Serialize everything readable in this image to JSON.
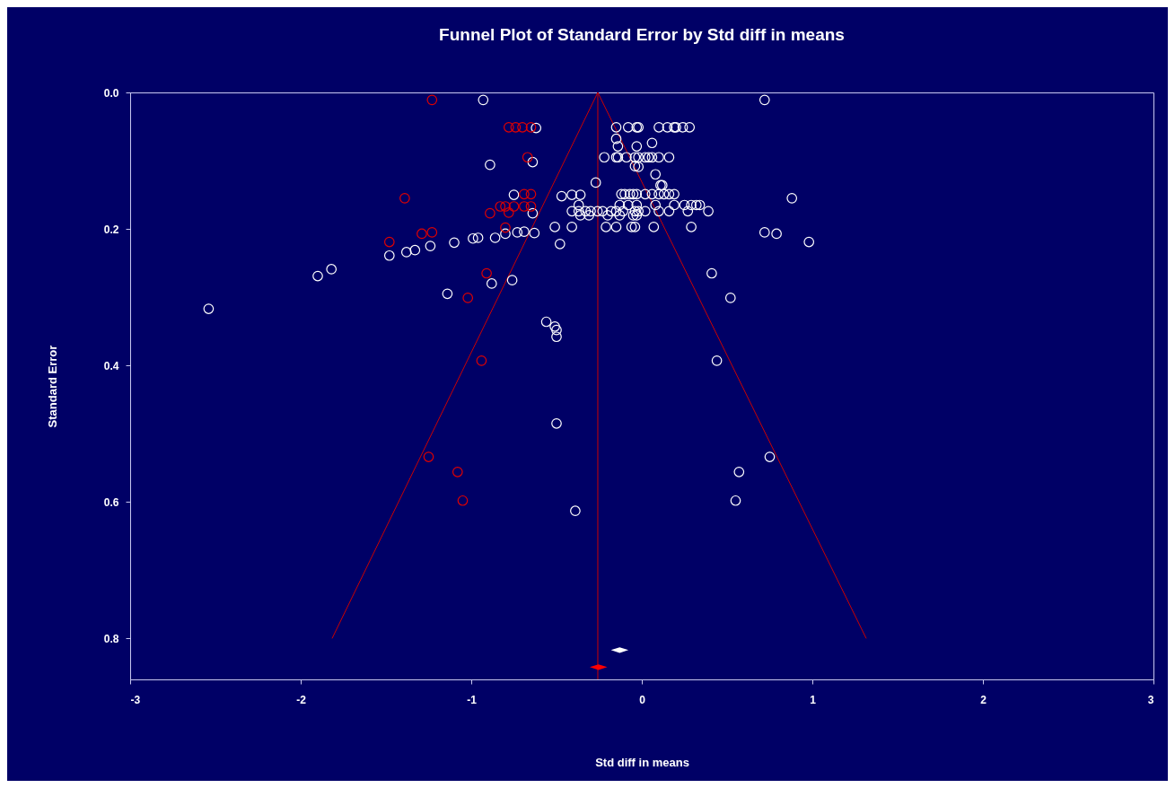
{
  "chart_data": {
    "type": "scatter",
    "title": "Funnel Plot of Standard Error by Std diff in means",
    "xlabel": "Std diff in means",
    "ylabel": "Standard Error",
    "xlim": [
      -3,
      3
    ],
    "xticks": [
      -3,
      -2,
      -1,
      0,
      1,
      2,
      3
    ],
    "ylim": [
      0.86,
      0
    ],
    "yticks": [
      {
        "value": 0,
        "label": "0.0"
      },
      0.2,
      0.4,
      0.6,
      0.8
    ],
    "grid": false,
    "marker": "circle",
    "series": [
      {
        "color": "#ffffff",
        "x": [
          -0.93,
          0.72,
          -0.62,
          -0.89,
          -0.64,
          -0.75,
          -0.64,
          -0.63,
          -0.69,
          -0.73,
          -0.8,
          -0.86,
          -0.96,
          -0.99,
          -1.1,
          -1.24,
          -1.33,
          -1.38,
          -1.48,
          -1.82,
          -1.9,
          -2.54,
          -1.14,
          -0.88,
          -0.76,
          -0.56,
          -0.51,
          -0.5,
          -0.5,
          -0.5,
          -0.39,
          0.41,
          0.52,
          0.44,
          0.75,
          0.57,
          0.55,
          0.88,
          0.72,
          0.79,
          0.98,
          -0.15,
          -0.08,
          -0.03,
          -0.02,
          0.1,
          0.15,
          0.19,
          0.2,
          0.24,
          0.28,
          -0.15,
          -0.14,
          -0.03,
          0.06,
          -0.22,
          -0.15,
          -0.14,
          -0.09,
          -0.04,
          -0.02,
          0.02,
          0.04,
          0.06,
          0.1,
          0.16,
          -0.04,
          -0.02,
          0.08,
          -0.27,
          0.11,
          0.12,
          -0.47,
          -0.41,
          -0.36,
          -0.12,
          -0.1,
          -0.07,
          -0.05,
          -0.03,
          0.02,
          0.06,
          0.1,
          0.13,
          0.16,
          0.19,
          -0.37,
          -0.13,
          -0.08,
          -0.03,
          0.08,
          0.19,
          0.25,
          0.29,
          0.32,
          0.34,
          -0.41,
          -0.37,
          -0.33,
          -0.3,
          -0.26,
          -0.23,
          -0.18,
          -0.15,
          -0.11,
          -0.04,
          -0.02,
          0.02,
          0.1,
          0.16,
          0.27,
          0.39,
          -0.36,
          -0.31,
          -0.2,
          -0.13,
          -0.05,
          -0.03,
          -0.51,
          -0.41,
          -0.21,
          -0.15,
          -0.06,
          -0.04,
          0.07,
          0.29,
          -0.48
        ],
        "values": [
          0.011,
          0.011,
          0.052,
          0.106,
          0.102,
          0.15,
          0.177,
          0.206,
          0.204,
          0.205,
          0.207,
          0.213,
          0.213,
          0.214,
          0.22,
          0.225,
          0.231,
          0.234,
          0.239,
          0.259,
          0.269,
          0.317,
          0.295,
          0.28,
          0.275,
          0.336,
          0.343,
          0.348,
          0.358,
          0.485,
          0.613,
          0.265,
          0.301,
          0.393,
          0.534,
          0.556,
          0.598,
          0.155,
          0.205,
          0.207,
          0.219,
          0.051,
          0.051,
          0.051,
          0.051,
          0.051,
          0.051,
          0.051,
          0.051,
          0.051,
          0.051,
          0.068,
          0.079,
          0.079,
          0.074,
          0.095,
          0.095,
          0.095,
          0.095,
          0.095,
          0.095,
          0.095,
          0.095,
          0.095,
          0.095,
          0.095,
          0.108,
          0.109,
          0.12,
          0.132,
          0.136,
          0.136,
          0.152,
          0.15,
          0.15,
          0.149,
          0.149,
          0.149,
          0.149,
          0.149,
          0.149,
          0.149,
          0.149,
          0.149,
          0.149,
          0.149,
          0.165,
          0.165,
          0.165,
          0.165,
          0.165,
          0.165,
          0.165,
          0.165,
          0.165,
          0.165,
          0.174,
          0.174,
          0.174,
          0.174,
          0.174,
          0.174,
          0.174,
          0.174,
          0.174,
          0.174,
          0.174,
          0.174,
          0.174,
          0.174,
          0.174,
          0.174,
          0.18,
          0.18,
          0.18,
          0.18,
          0.18,
          0.18,
          0.197,
          0.197,
          0.197,
          0.197,
          0.197,
          0.197,
          0.197,
          0.197,
          0.222
        ]
      },
      {
        "color": "#e00000",
        "x": [
          -1.23,
          -0.78,
          -0.74,
          -0.7,
          -0.65,
          -0.67,
          -1.39,
          -0.69,
          -0.65,
          -0.83,
          -0.8,
          -0.75,
          -0.69,
          -0.65,
          -0.89,
          -0.78,
          -0.8,
          -1.29,
          -1.23,
          -1.48,
          -0.91,
          -1.02,
          -0.94,
          -1.25,
          -1.08,
          -1.05
        ],
        "values": [
          0.011,
          0.051,
          0.051,
          0.051,
          0.051,
          0.095,
          0.155,
          0.149,
          0.149,
          0.167,
          0.167,
          0.167,
          0.167,
          0.167,
          0.177,
          0.176,
          0.198,
          0.207,
          0.205,
          0.219,
          0.265,
          0.301,
          0.393,
          0.534,
          0.556,
          0.598
        ]
      },
      {
        "type": "line",
        "marker": "none",
        "color": "#cc0000",
        "x": [
          -1.816,
          -0.258,
          1.316
        ],
        "values": [
          0.8,
          0,
          0.8
        ]
      },
      {
        "marker": "diamond",
        "color": "#ffffff",
        "x": [
          -0.13
        ],
        "values": [
          0.817
        ]
      },
      {
        "marker": "diamond",
        "color": "#ff0000",
        "x": [
          -0.254
        ],
        "values": [
          0.842
        ]
      }
    ],
    "ref_lines": [
      {
        "axis": "x",
        "value": -0.258,
        "color": "#cc0000"
      }
    ]
  }
}
